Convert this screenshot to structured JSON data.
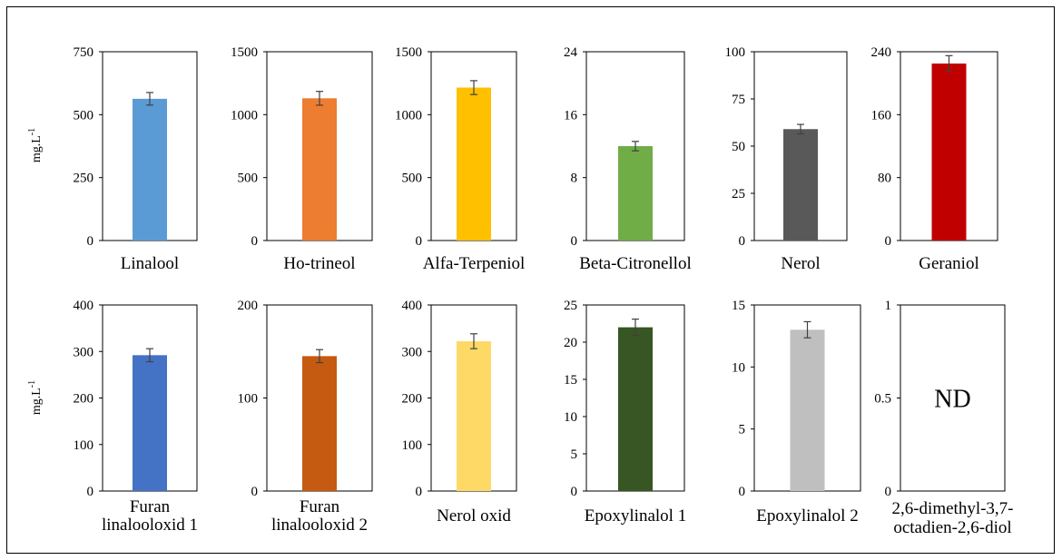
{
  "figure": {
    "y_unit_label": "mg.L",
    "y_unit_exp": "-1"
  },
  "chart_data": [
    {
      "type": "bar",
      "label_lines": [
        "Linalool"
      ],
      "value": 563,
      "error": 25,
      "yticks": [
        "0",
        "250",
        "500",
        "750"
      ],
      "ylim": [
        0,
        750
      ],
      "color": "#5b9bd5"
    },
    {
      "type": "bar",
      "label_lines": [
        "Ho-trineol"
      ],
      "value": 1130,
      "error": 55,
      "yticks": [
        "0",
        "500",
        "1000",
        "1500"
      ],
      "ylim": [
        0,
        1500
      ],
      "color": "#ed7d31"
    },
    {
      "type": "bar",
      "label_lines": [
        "Alfa-Terpeniol"
      ],
      "value": 1215,
      "error": 55,
      "yticks": [
        "0",
        "500",
        "1000",
        "1500"
      ],
      "ylim": [
        0,
        1500
      ],
      "color": "#ffc000"
    },
    {
      "type": "bar",
      "label_lines": [
        "Beta-Citronellol"
      ],
      "value": 12.0,
      "error": 0.6,
      "yticks": [
        "0",
        "8",
        "16",
        "24"
      ],
      "ylim": [
        0,
        24
      ],
      "color": "#70ad47"
    },
    {
      "type": "bar",
      "label_lines": [
        "Nerol"
      ],
      "value": 59,
      "error": 2.5,
      "yticks": [
        "0",
        "25",
        "50",
        "75",
        "100"
      ],
      "ylim": [
        0,
        100
      ],
      "color": "#595959"
    },
    {
      "type": "bar",
      "label_lines": [
        "Geraniol"
      ],
      "value": 225,
      "error": 10,
      "yticks": [
        "0",
        "80",
        "160",
        "240"
      ],
      "ylim": [
        0,
        240
      ],
      "color": "#c00000"
    },
    {
      "type": "bar",
      "label_lines": [
        "Furan",
        "linalooloxid 1"
      ],
      "value": 292,
      "error": 14,
      "yticks": [
        "0",
        "100",
        "200",
        "300",
        "400"
      ],
      "ylim": [
        0,
        400
      ],
      "color": "#4472c4"
    },
    {
      "type": "bar",
      "label_lines": [
        "Furan",
        "linalooloxid 2"
      ],
      "value": 145,
      "error": 7,
      "yticks": [
        "0",
        "100",
        "200"
      ],
      "ylim": [
        0,
        200
      ],
      "color": "#c55a11"
    },
    {
      "type": "bar",
      "label_lines": [
        "Nerol oxid"
      ],
      "value": 322,
      "error": 16,
      "yticks": [
        "0",
        "100",
        "200",
        "300",
        "400"
      ],
      "ylim": [
        0,
        400
      ],
      "color": "#ffd966"
    },
    {
      "type": "bar",
      "label_lines": [
        "Epoxylinalol 1"
      ],
      "value": 22.0,
      "error": 1.1,
      "yticks": [
        "0",
        "5",
        "10",
        "15",
        "20",
        "25"
      ],
      "ylim": [
        0,
        25
      ],
      "color": "#375623"
    },
    {
      "type": "bar",
      "label_lines": [
        "Epoxylinalol 2"
      ],
      "value": 13.0,
      "error": 0.65,
      "yticks": [
        "0",
        "5",
        "10",
        "15"
      ],
      "ylim": [
        0,
        15
      ],
      "color": "#bfbfbf"
    },
    {
      "type": "bar",
      "label_lines": [
        "2,6-dimethyl-3,7-",
        "octadien-2,6-diol"
      ],
      "value": null,
      "error": null,
      "yticks": [
        "0",
        "0.5",
        "1"
      ],
      "ylim": [
        0,
        1
      ],
      "color": "#ffffff",
      "annotation": "ND"
    }
  ]
}
